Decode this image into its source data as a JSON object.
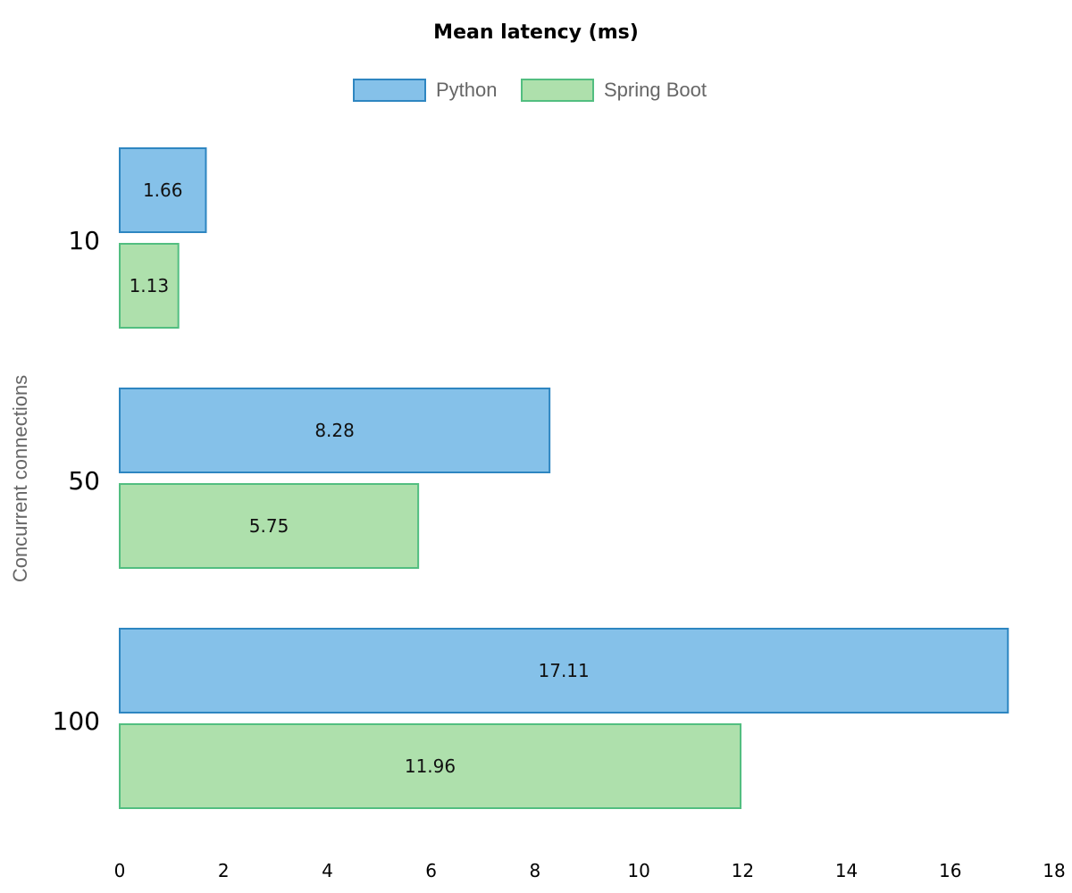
{
  "chart_data": {
    "type": "bar",
    "orientation": "horizontal",
    "title": "Mean latency (ms)",
    "xlabel": "",
    "ylabel": "Concurrent connections",
    "categories": [
      "10",
      "50",
      "100"
    ],
    "series": [
      {
        "name": "Python",
        "values": [
          1.66,
          8.28,
          17.11
        ],
        "fill": "#85c1e9",
        "stroke": "#2e86c1"
      },
      {
        "name": "Spring Boot",
        "values": [
          1.13,
          5.75,
          11.96
        ],
        "fill": "#aee0ac",
        "stroke": "#52be80"
      }
    ],
    "data_labels": [
      [
        "1.66",
        "8.28",
        "17.11"
      ],
      [
        "1.13",
        "5.75",
        "11.96"
      ]
    ],
    "xlim": [
      0,
      18
    ],
    "x_ticks": [
      "0",
      "2",
      "4",
      "6",
      "8",
      "10",
      "12",
      "14",
      "16",
      "18"
    ],
    "grid": false,
    "legend_position": "top"
  }
}
